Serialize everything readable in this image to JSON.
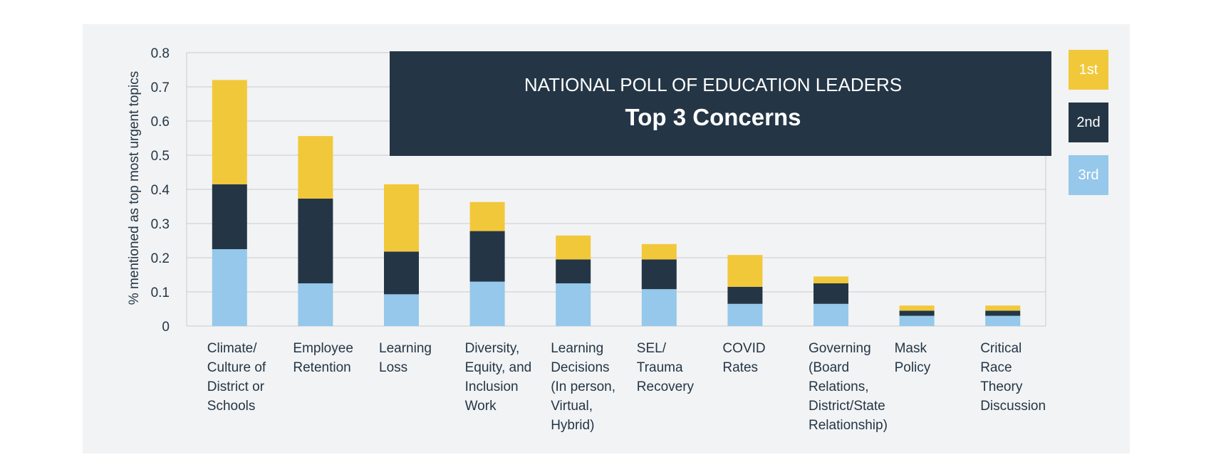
{
  "chart_data": {
    "type": "bar",
    "stacked": true,
    "title": "NATIONAL POLL OF EDUCATION LEADERS",
    "subtitle": "Top 3 Concerns",
    "xlabel": "",
    "ylabel": "% mentioned as top most urgent topics",
    "ylim": [
      0,
      0.8
    ],
    "yticks": [
      {
        "value": 0,
        "label": "0"
      },
      {
        "value": 0.1,
        "label": "0.1"
      },
      {
        "value": 0.2,
        "label": "0.2"
      },
      {
        "value": 0.3,
        "label": "0.3"
      },
      {
        "value": 0.4,
        "label": "0.4"
      },
      {
        "value": 0.5,
        "label": "0.5"
      },
      {
        "value": 0.6,
        "label": "0.6"
      },
      {
        "value": 0.7,
        "label": "0.7"
      },
      {
        "value": 0.8,
        "label": "0.8"
      }
    ],
    "grid": true,
    "legend_position": "right",
    "categories": [
      [
        "Climate/",
        "Culture of",
        "District or",
        "Schools"
      ],
      [
        "Employee",
        "Retention"
      ],
      [
        "Learning",
        "Loss"
      ],
      [
        "Diversity,",
        "Equity, and",
        "Inclusion",
        "Work"
      ],
      [
        "Learning",
        "Decisions",
        "(In person,",
        "Virtual,",
        "Hybrid)"
      ],
      [
        "SEL/",
        "Trauma",
        "Recovery"
      ],
      [
        "COVID",
        "Rates"
      ],
      [
        "Governing",
        "(Board",
        "Relations,",
        "District/State",
        "Relationship)"
      ],
      [
        "Mask",
        "Policy"
      ],
      [
        "Critical",
        "Race",
        "Theory",
        "Discussion"
      ]
    ],
    "series": [
      {
        "name": "3rd",
        "color": "#95c8ea",
        "values": [
          0.225,
          0.125,
          0.093,
          0.13,
          0.125,
          0.108,
          0.065,
          0.065,
          0.03,
          0.03
        ]
      },
      {
        "name": "2nd",
        "color": "#243646",
        "values": [
          0.19,
          0.248,
          0.125,
          0.148,
          0.07,
          0.087,
          0.05,
          0.06,
          0.015,
          0.015
        ]
      },
      {
        "name": "1st",
        "color": "#f2c83b",
        "values": [
          0.305,
          0.183,
          0.197,
          0.085,
          0.07,
          0.045,
          0.093,
          0.02,
          0.015,
          0.015
        ]
      }
    ]
  },
  "legend": [
    {
      "label": "1st",
      "color": "#f2c83b"
    },
    {
      "label": "2nd",
      "color": "#243646"
    },
    {
      "label": "3rd",
      "color": "#95c8ea"
    }
  ]
}
